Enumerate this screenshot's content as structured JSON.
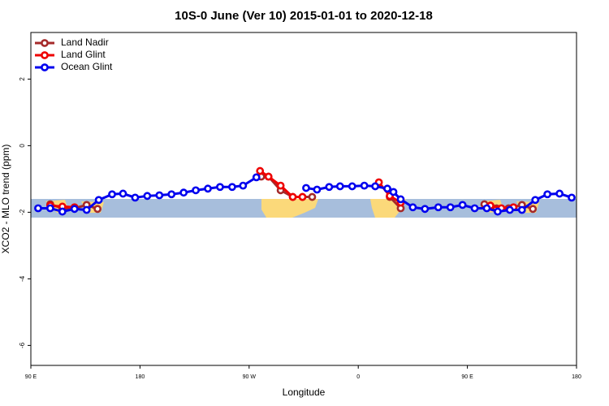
{
  "chart_data": {
    "type": "line",
    "title": "10S-0 June (Ver 10)   2015-01-01 to 2020-12-18",
    "x_label": "Longitude",
    "y_label": "XCO2 - MLO trend (ppm)",
    "xlim": [
      90,
      540
    ],
    "xticks": [
      {
        "value": 90,
        "label": "90 E"
      },
      {
        "value": 180,
        "label": "180"
      },
      {
        "value": 270,
        "label": "90 W"
      },
      {
        "value": 360,
        "label": "0"
      },
      {
        "value": 450,
        "label": "90 E"
      },
      {
        "value": 540,
        "label": "180"
      }
    ],
    "ylim": [
      -6.6,
      3.4
    ],
    "yticks": [
      -6,
      -4,
      -2,
      0,
      2
    ],
    "legend": "top-left",
    "series": [
      {
        "name": "Land Nadir",
        "color": "#a52a2a",
        "x": [
          106,
          116,
          126,
          136,
          145,
          null,
          280,
          286,
          296,
          306,
          314,
          322,
          null,
          386,
          395,
          null,
          464,
          474,
          484,
          495,
          504
        ],
        "values": [
          -1.76,
          -1.88,
          -1.88,
          -1.78,
          -1.9,
          null,
          -0.93,
          -0.93,
          -1.34,
          -1.54,
          -1.54,
          -1.54,
          null,
          -1.54,
          -1.88,
          null,
          -1.76,
          -1.88,
          -1.88,
          -1.78,
          -1.9
        ]
      },
      {
        "name": "Land Glint",
        "color": "#ee0000",
        "x": [
          106,
          116,
          126,
          null,
          279,
          286,
          296,
          306,
          314,
          null,
          377,
          386,
          395,
          null,
          469,
          478,
          488
        ],
        "values": [
          -1.8,
          -1.83,
          -1.85,
          null,
          -0.76,
          -0.93,
          -1.2,
          -1.54,
          -1.54,
          null,
          -1.1,
          -1.51,
          -1.71,
          null,
          -1.8,
          -1.88,
          -1.85
        ]
      },
      {
        "name": "Ocean Glint",
        "color": "#0000ee",
        "x": [
          96,
          106,
          116,
          126,
          136,
          146,
          157,
          166,
          176,
          186,
          196,
          206,
          216,
          226,
          236,
          246,
          256,
          265,
          276,
          null,
          317,
          326,
          336,
          345,
          355,
          365,
          374,
          384,
          389,
          395,
          405,
          415,
          426,
          436,
          446,
          456,
          466,
          475,
          485,
          495,
          506,
          516,
          526,
          536
        ],
        "values": [
          -1.88,
          -1.88,
          -1.98,
          -1.9,
          -1.93,
          -1.63,
          -1.46,
          -1.44,
          -1.56,
          -1.51,
          -1.49,
          -1.46,
          -1.41,
          -1.34,
          -1.29,
          -1.24,
          -1.24,
          -1.2,
          -0.95,
          null,
          -1.27,
          -1.32,
          -1.24,
          -1.22,
          -1.22,
          -1.2,
          -1.22,
          -1.29,
          -1.39,
          -1.61,
          -1.85,
          -1.9,
          -1.85,
          -1.85,
          -1.78,
          -1.88,
          -1.88,
          -1.98,
          -1.93,
          -1.93,
          -1.63,
          -1.46,
          -1.44,
          -1.56
        ]
      }
    ]
  }
}
